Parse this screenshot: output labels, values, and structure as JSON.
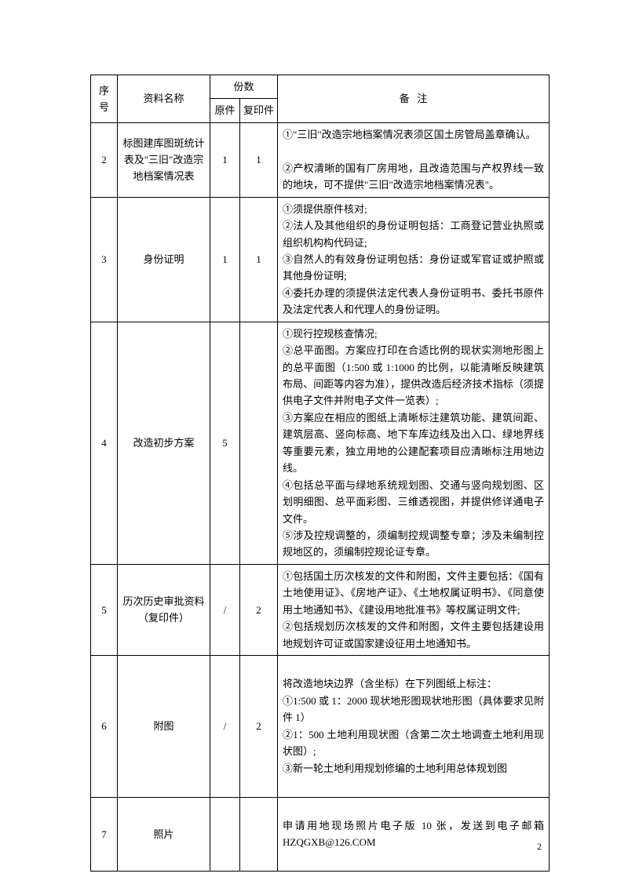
{
  "header": {
    "seq": "序号",
    "name": "资料名称",
    "copies": "份数",
    "original": "原件",
    "photocopy": "复印件",
    "remark_b": "备",
    "remark_z": "注"
  },
  "rows": [
    {
      "seq": "2",
      "name": "标图建库图斑统计表及\"三旧\"改造宗地档案情况表",
      "orig": "1",
      "copy": "1",
      "remark": "①\"三旧\"改造宗地档案情况表须区国土房管局盖章确认。\n\n②产权清晰的国有厂房用地，且改造范围与产权界线一致的地块，可不提供\"三旧\"改造宗地档案情况表\"。"
    },
    {
      "seq": "3",
      "name": "身份证明",
      "orig": "1",
      "copy": "1",
      "remark": "①须提供原件核对;\n②法人及其他组织的身份证明包括：工商登记营业执照或组织机构构代码证;\n③自然人的有效身份证明包括：身份证或军官证或护照或其他身份证明;\n④委托办理的须提供法定代表人身份证明书、委托书原件及法定代表人和代理人的身份证明。"
    },
    {
      "seq": "4",
      "name": "改造初步方案",
      "orig": "5",
      "copy": "",
      "remark": "①现行控规核查情况;\n②总平面图。方案应打印在合适比例的现状实测地形图上的总平面图（1:500 或 1:1000 的比例，以能清晰反映建筑布局、间距等内容为准），提供改造后经济技术指标（须提供电子文件并附电子文件一览表）;\n③方案应在相应的图纸上清晰标注建筑功能、建筑间距、建筑层高、竖向标高、地下车库边线及出入口、绿地界线等重要元素，独立用地的公建配套项目应清晰标注用地边线。\n④包括总平面与绿地系统规划图、交通与竖向规划图、区划明细图、总平面彩图、三维透视图，并提供修详通电子文件。\n⑤涉及控规调整的，须编制控规调整专章；涉及未编制控规地区的，须编制控规论证专章。"
    },
    {
      "seq": "5",
      "name": "历次历史审批资料（复印件）",
      "orig": "/",
      "copy": "2",
      "remark": "①包括国土历次核发的文件和附图，文件主要包括：《国有土地使用证》、《房地产证》、《土地权属证明书》、《同意使用土地通知书》、《建设用地批准书》等权属证明文件;\n②包括规划历次核发的文件和附图，文件主要包括建设用地规划许可证或国家建设征用土地通知书。"
    },
    {
      "seq": "6",
      "name": "附图",
      "orig": "/",
      "copy": "2",
      "remark": "\n将改造地块边界（含坐标）在下列图纸上标注：\n①1:500 或 1：2000 现状地形图现状地形图（具体要求见附件 1）\n②1：500 土地利用现状图（含第二次土地调查土地利用现状图）;\n③新一轮土地利用规划修编的土地利用总体规划图\n\n"
    },
    {
      "seq": "7",
      "name": "照片",
      "orig": "",
      "copy": "",
      "remark": "\n申请用地现场照片电子版 10 张，发送到电子邮箱HZQGXB@126.COM\n\n"
    }
  ],
  "pageNumber": "2"
}
